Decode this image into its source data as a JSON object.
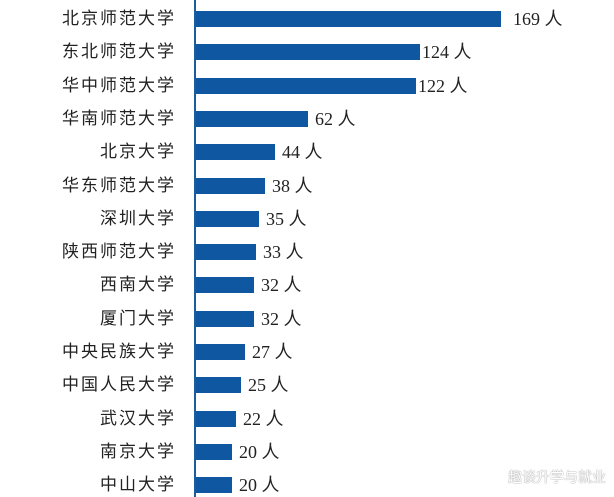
{
  "chart_data": {
    "type": "bar",
    "orientation": "horizontal",
    "title": "",
    "xlabel": "",
    "ylabel": "",
    "unit": "人",
    "categories": [
      "北京师范大学",
      "东北师范大学",
      "华中师范大学",
      "华南师范大学",
      "北京大学",
      "华东师范大学",
      "深圳大学",
      "陕西师范大学",
      "西南大学",
      "厦门大学",
      "中央民族大学",
      "中国人民大学",
      "武汉大学",
      "南京大学",
      "中山大学"
    ],
    "values": [
      169,
      124,
      122,
      62,
      44,
      38,
      35,
      33,
      32,
      32,
      27,
      25,
      22,
      20,
      20
    ],
    "value_labels": [
      "169 人",
      "124 人",
      "122 人",
      "62 人",
      "44 人",
      "38 人",
      "35 人",
      "33 人",
      "32 人",
      "32 人",
      "27 人",
      "25 人",
      "22 人",
      "20 人",
      "20 人"
    ],
    "grid": false,
    "legend": "none",
    "bar_color": "#0f57a0",
    "xlim": [
      0,
      169
    ]
  },
  "watermark": "趣谈升学与就业"
}
